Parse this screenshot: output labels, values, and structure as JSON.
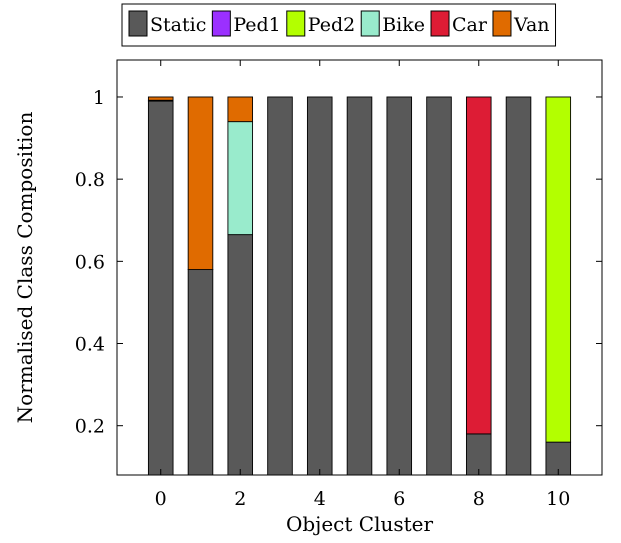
{
  "chart_data": {
    "type": "bar",
    "stacked": true,
    "xlabel": "Object Cluster",
    "ylabel": "Normalised Class Composition",
    "xlim": [
      -1.1,
      11.1
    ],
    "ylim": [
      0.08,
      1.09
    ],
    "xticks": [
      0,
      2,
      4,
      6,
      8,
      10
    ],
    "xtick_labels": [
      "0",
      "2",
      "4",
      "6",
      "8",
      "10"
    ],
    "yticks": [
      0.2,
      0.4,
      0.6,
      0.8,
      1.0
    ],
    "ytick_labels": [
      "0.2",
      "0.4",
      "0.6",
      "0.8",
      "1"
    ],
    "legend_position": "top",
    "grid": false,
    "x": [
      0,
      1,
      2,
      3,
      4,
      5,
      6,
      7,
      8,
      9,
      10
    ],
    "series": [
      {
        "name": "Static",
        "color": "#595959",
        "values": [
          0.99,
          0.58,
          0.665,
          1.0,
          1.0,
          1.0,
          1.0,
          1.0,
          0.18,
          1.0,
          0.16
        ]
      },
      {
        "name": "Ped1",
        "color": "#9b30ff",
        "values": [
          0.002,
          0,
          0,
          0,
          0,
          0,
          0,
          0,
          0,
          0,
          0
        ]
      },
      {
        "name": "Ped2",
        "color": "#b3ff00",
        "values": [
          0,
          0,
          0,
          0,
          0,
          0,
          0,
          0,
          0,
          0,
          0.84
        ]
      },
      {
        "name": "Bike",
        "color": "#99ebcc",
        "values": [
          0,
          0,
          0.275,
          0,
          0,
          0,
          0,
          0,
          0,
          0,
          0
        ]
      },
      {
        "name": "Car",
        "color": "#dd1c35",
        "values": [
          0,
          0,
          0,
          0,
          0,
          0,
          0,
          0,
          0.82,
          0,
          0
        ]
      },
      {
        "name": "Van",
        "color": "#e06b00",
        "values": [
          0.008,
          0.42,
          0.06,
          0,
          0,
          0,
          0,
          0,
          0,
          0,
          0
        ]
      }
    ]
  }
}
